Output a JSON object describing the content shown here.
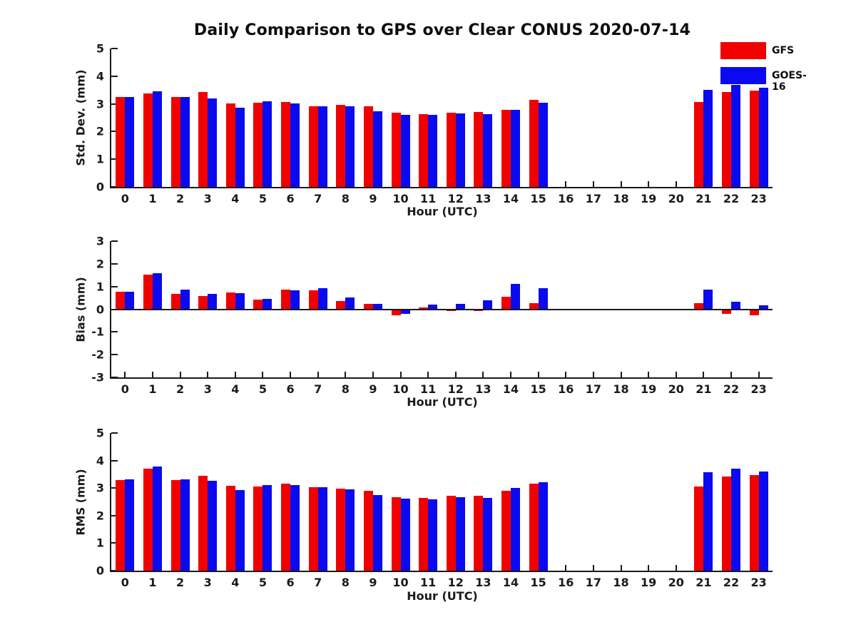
{
  "title": "Daily Comparison to GPS over Clear CONUS 2020-07-14",
  "legend": [
    {
      "label": "GFS",
      "color": "#f10000"
    },
    {
      "label": "GOES-16",
      "color": "#0a0af0"
    }
  ],
  "colors": {
    "gfs": "#f10000",
    "goes16": "#0a0af0",
    "axis": "#1a1a1a"
  },
  "chart_data": [
    {
      "type": "bar",
      "panel": "std-dev",
      "ylabel": "Std. Dev. (mm)",
      "xlabel": "Hour (UTC)",
      "ylim": [
        0,
        5
      ],
      "yticks": [
        0,
        1,
        2,
        3,
        4,
        5
      ],
      "categories": [
        0,
        1,
        2,
        3,
        4,
        5,
        6,
        7,
        8,
        9,
        10,
        11,
        12,
        13,
        14,
        15,
        16,
        17,
        18,
        19,
        20,
        21,
        22,
        23
      ],
      "legend_position": "top-right-outside",
      "grid": false,
      "series": [
        {
          "name": "GFS",
          "color": "#f10000",
          "values": [
            3.24,
            3.38,
            3.24,
            3.43,
            3.02,
            3.05,
            3.06,
            2.92,
            2.96,
            2.9,
            2.67,
            2.63,
            2.68,
            2.7,
            2.79,
            3.15,
            null,
            null,
            null,
            null,
            null,
            3.07,
            3.42,
            3.47
          ]
        },
        {
          "name": "GOES-16",
          "color": "#0a0af0",
          "values": [
            3.24,
            3.45,
            3.24,
            3.19,
            2.87,
            3.09,
            3.02,
            2.92,
            2.91,
            2.74,
            2.61,
            2.6,
            2.66,
            2.63,
            2.79,
            3.05,
            null,
            null,
            null,
            null,
            null,
            3.5,
            3.68,
            3.58
          ]
        }
      ]
    },
    {
      "type": "bar",
      "panel": "bias",
      "ylabel": "Bias (mm)",
      "xlabel": "Hour (UTC)",
      "ylim": [
        -3,
        3
      ],
      "yticks": [
        3,
        2,
        1,
        0,
        -1,
        -2,
        -3
      ],
      "categories": [
        0,
        1,
        2,
        3,
        4,
        5,
        6,
        7,
        8,
        9,
        10,
        11,
        12,
        13,
        14,
        15,
        16,
        17,
        18,
        19,
        20,
        21,
        22,
        23
      ],
      "grid": false,
      "series": [
        {
          "name": "GFS",
          "color": "#f10000",
          "values": [
            0.78,
            1.52,
            0.69,
            0.58,
            0.74,
            0.42,
            0.85,
            0.82,
            0.37,
            0.23,
            -0.23,
            0.07,
            -0.03,
            -0.02,
            0.54,
            0.27,
            null,
            null,
            null,
            null,
            null,
            0.26,
            -0.18,
            -0.25
          ]
        },
        {
          "name": "GOES-16",
          "color": "#0a0af0",
          "values": [
            0.78,
            1.58,
            0.85,
            0.69,
            0.71,
            0.47,
            0.84,
            0.92,
            0.51,
            0.22,
            -0.16,
            0.2,
            0.22,
            0.38,
            1.1,
            0.94,
            null,
            null,
            null,
            null,
            null,
            0.87,
            0.33,
            0.18
          ]
        }
      ]
    },
    {
      "type": "bar",
      "panel": "rms",
      "ylabel": "RMS (mm)",
      "xlabel": "Hour (UTC)",
      "ylim": [
        0,
        5
      ],
      "yticks": [
        0,
        1,
        2,
        3,
        4,
        5
      ],
      "categories": [
        0,
        1,
        2,
        3,
        4,
        5,
        6,
        7,
        8,
        9,
        10,
        11,
        12,
        13,
        14,
        15,
        16,
        17,
        18,
        19,
        20,
        21,
        22,
        23
      ],
      "grid": false,
      "series": [
        {
          "name": "GFS",
          "color": "#f10000",
          "values": [
            3.3,
            3.7,
            3.28,
            3.45,
            3.09,
            3.05,
            3.17,
            3.02,
            2.97,
            2.89,
            2.66,
            2.64,
            2.71,
            2.72,
            2.89,
            3.17,
            null,
            null,
            null,
            null,
            null,
            3.06,
            3.41,
            3.48
          ]
        },
        {
          "name": "GOES-16",
          "color": "#0a0af0",
          "values": [
            3.32,
            3.78,
            3.32,
            3.26,
            2.94,
            3.12,
            3.12,
            3.02,
            2.95,
            2.74,
            2.62,
            2.6,
            2.67,
            2.64,
            3.0,
            3.21,
            null,
            null,
            null,
            null,
            null,
            3.58,
            3.71,
            3.6
          ]
        }
      ]
    }
  ]
}
